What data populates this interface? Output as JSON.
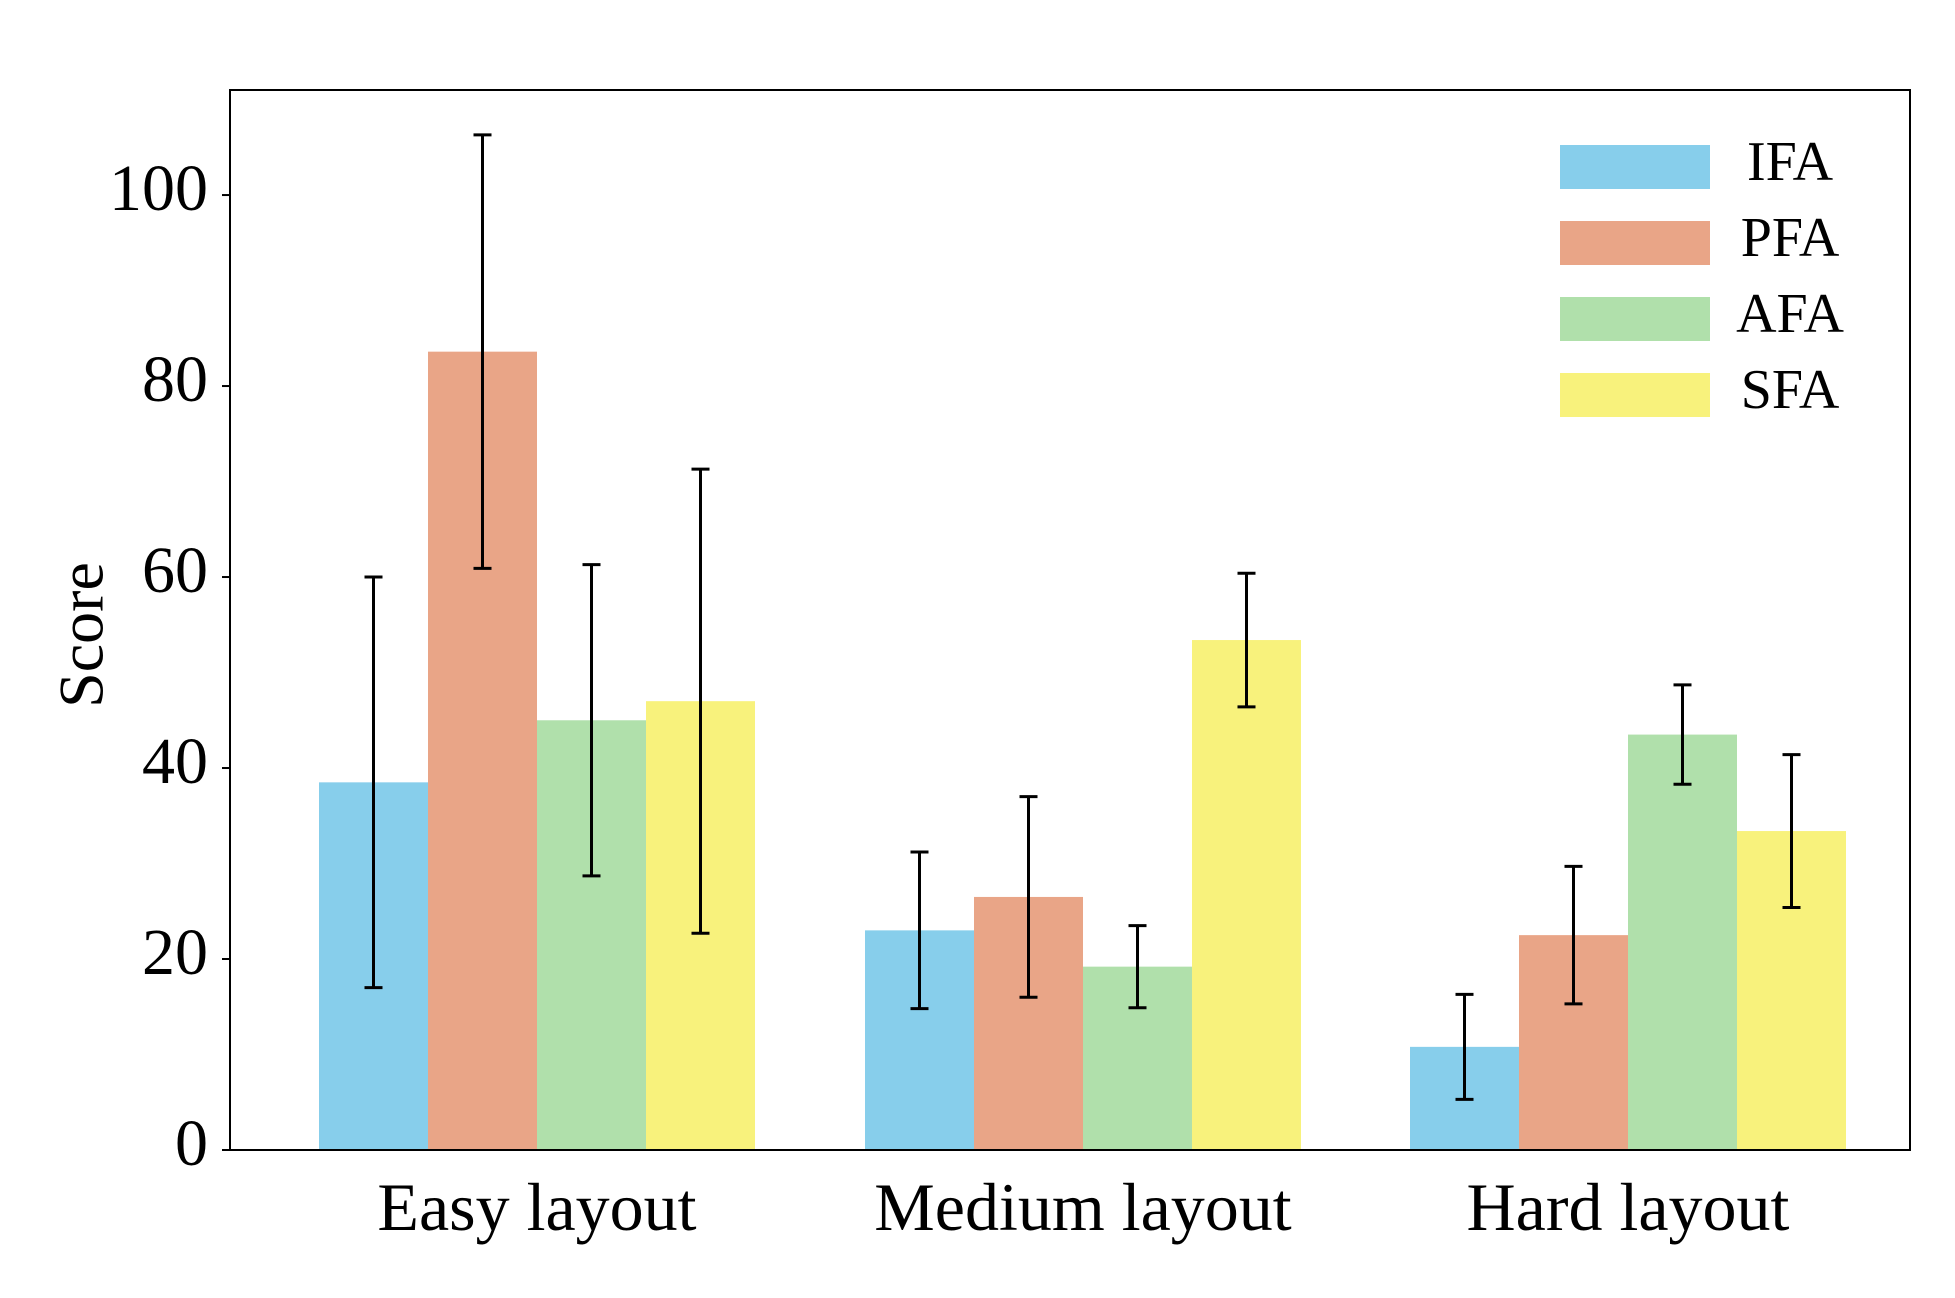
{
  "chart_data": {
    "type": "bar",
    "ylabel": "Score",
    "xlabel": "",
    "ylim": [
      0,
      111
    ],
    "yticks": [
      "0",
      "20",
      "40",
      "60",
      "80",
      "100"
    ],
    "categories": [
      "Easy layout",
      "Medium layout",
      "Hard layout"
    ],
    "series": [
      {
        "name": "IFA",
        "color": "#87CEEB",
        "values": [
          38.5,
          23.0,
          10.8
        ],
        "errors": [
          21.5,
          8.2,
          5.5
        ]
      },
      {
        "name": "PFA",
        "color": "#E9A587",
        "values": [
          83.6,
          26.5,
          22.5
        ],
        "errors": [
          22.7,
          10.5,
          7.2
        ]
      },
      {
        "name": "AFA",
        "color": "#B0E0AB",
        "values": [
          45.0,
          19.2,
          43.5
        ],
        "errors": [
          16.3,
          4.3,
          5.2
        ]
      },
      {
        "name": "SFA",
        "color": "#F8F27C",
        "values": [
          47.0,
          53.4,
          33.4
        ],
        "errors": [
          24.3,
          7.0,
          8.0
        ]
      }
    ],
    "legend_position": "top-right",
    "grid": false
  }
}
